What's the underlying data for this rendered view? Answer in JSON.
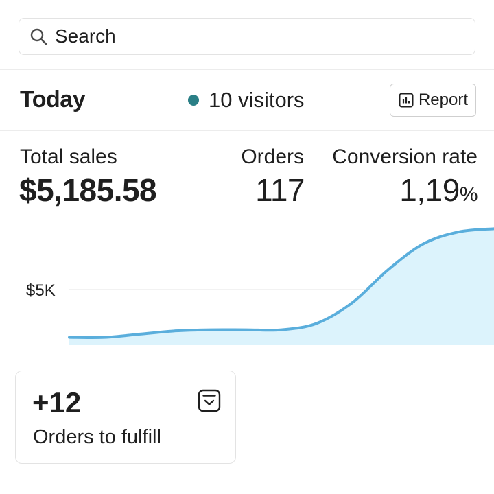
{
  "search": {
    "placeholder": "Search"
  },
  "today": {
    "title": "Today",
    "visitors_label": "10 visitors",
    "visitor_dot_color": "#2a7f86",
    "report_button_label": "Report",
    "report_icon": "bar-chart-icon"
  },
  "metrics": {
    "total_sales_label": "Total sales",
    "total_sales_value": "$5,185.58",
    "orders_label": "Orders",
    "orders_value": "117",
    "conversion_label": "Conversion rate",
    "conversion_value": "1,19",
    "conversion_unit": "%"
  },
  "chart_data": {
    "type": "area",
    "y_tick_labels": [
      "$5K"
    ],
    "y_ticks": [
      5000
    ],
    "x": [
      0,
      1,
      2,
      3,
      4,
      5,
      6,
      7,
      8,
      9,
      10,
      11,
      12
    ],
    "values": [
      2800,
      2800,
      2950,
      3100,
      3150,
      3150,
      3150,
      3450,
      4400,
      5900,
      7100,
      7650,
      7800
    ],
    "ylim": [
      2000,
      8000
    ],
    "line_color": "#5aaedc",
    "fill_color": "#dcf3fc",
    "gridline_color": "#e6e6e6"
  },
  "fulfill_card": {
    "count": "+12",
    "label": "Orders to fulfill",
    "icon": "inbox-check-icon"
  }
}
